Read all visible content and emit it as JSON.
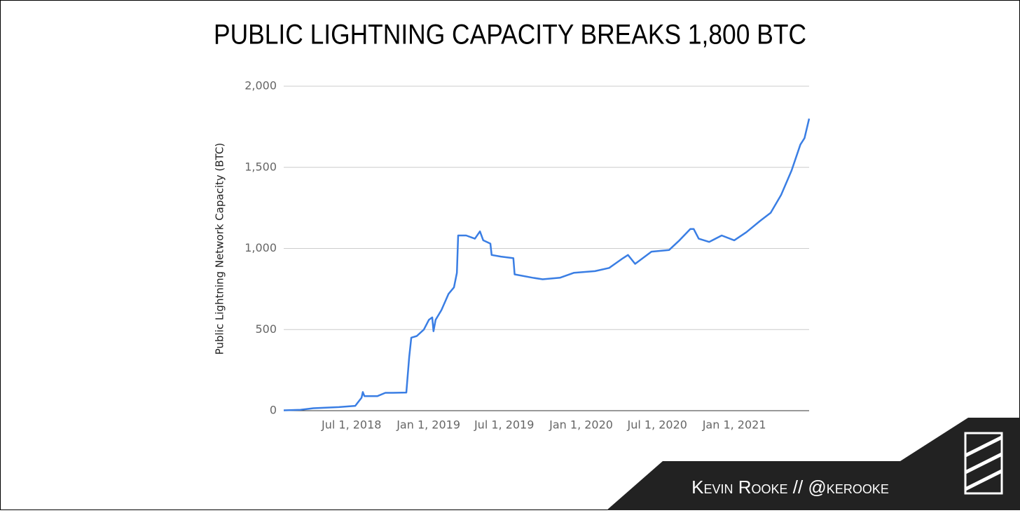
{
  "chart_data": {
    "type": "line",
    "title": "PUBLIC LIGHTNING CAPACITY BREAKS 1,800 BTC",
    "y_label": "Public Lightning Network Capacity (BTC)",
    "credit": "Kevin Rooke // @kerooke",
    "color": "#3a7ee4",
    "grid": true,
    "xlim": [
      "2018-01-20",
      "2021-06-29"
    ],
    "xticks": [
      {
        "value": "2018-07-01",
        "label": "Jul 1, 2018"
      },
      {
        "value": "2019-01-01",
        "label": "Jan 1, 2019"
      },
      {
        "value": "2019-07-01",
        "label": "Jul 1, 2019"
      },
      {
        "value": "2020-01-01",
        "label": "Jan 1, 2020"
      },
      {
        "value": "2020-07-01",
        "label": "Jul 1, 2020"
      },
      {
        "value": "2021-01-01",
        "label": "Jan 1, 2021"
      }
    ],
    "ylim": [
      0,
      2000
    ],
    "yticks": [
      0,
      500,
      {
        "value": 1000,
        "label": "1,000"
      },
      {
        "value": 1500,
        "label": "1,500"
      },
      {
        "value": 2000,
        "label": "2,000"
      }
    ],
    "x": [
      "2018-01-20",
      "2018-03-01",
      "2018-04-01",
      "2018-06-01",
      "2018-07-10",
      "2018-07-25",
      "2018-07-28",
      "2018-08-01",
      "2018-09-01",
      "2018-09-20",
      "2018-10-07",
      "2018-11-09",
      "2018-11-16",
      "2018-11-21",
      "2018-12-04",
      "2018-12-21",
      "2019-01-02",
      "2019-01-10",
      "2019-01-13",
      "2019-01-18",
      "2019-02-01",
      "2019-02-18",
      "2019-03-03",
      "2019-03-10",
      "2019-03-13",
      "2019-04-01",
      "2019-04-22",
      "2019-05-04",
      "2019-05-12",
      "2019-05-29",
      "2019-06-01",
      "2019-06-23",
      "2019-07-23",
      "2019-07-26",
      "2019-09-06",
      "2019-10-01",
      "2019-11-12",
      "2019-12-15",
      "2020-02-03",
      "2020-03-08",
      "2020-04-10",
      "2020-04-22",
      "2020-05-09",
      "2020-06-17",
      "2020-07-29",
      "2020-08-23",
      "2020-09-18",
      "2020-09-26",
      "2020-10-08",
      "2020-11-02",
      "2020-12-02",
      "2021-01-01",
      "2021-01-30",
      "2021-03-04",
      "2021-03-29",
      "2021-04-23",
      "2021-05-18",
      "2021-06-08",
      "2021-06-18",
      "2021-06-29"
    ],
    "values": [
      2,
      5,
      15,
      22,
      30,
      80,
      115,
      90,
      90,
      110,
      110,
      112,
      330,
      450,
      460,
      500,
      560,
      575,
      490,
      560,
      620,
      720,
      760,
      850,
      1080,
      1080,
      1060,
      1105,
      1050,
      1030,
      960,
      950,
      940,
      840,
      820,
      810,
      820,
      850,
      860,
      880,
      940,
      960,
      905,
      980,
      990,
      1050,
      1120,
      1120,
      1060,
      1040,
      1080,
      1050,
      1100,
      1170,
      1220,
      1330,
      1480,
      1640,
      1680,
      1800
    ]
  }
}
